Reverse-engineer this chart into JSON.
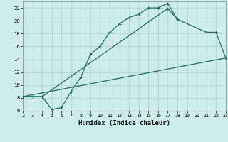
{
  "xlabel": "Humidex (Indice chaleur)",
  "bg_color": "#ceecea",
  "grid_color": "#b8d8d5",
  "line_color": "#1e6b62",
  "xlim": [
    2,
    23
  ],
  "ylim": [
    6,
    23
  ],
  "xticks": [
    2,
    3,
    4,
    5,
    6,
    7,
    8,
    9,
    10,
    11,
    12,
    13,
    14,
    15,
    16,
    17,
    18,
    19,
    20,
    21,
    22,
    23
  ],
  "yticks": [
    6,
    8,
    10,
    12,
    14,
    16,
    18,
    20,
    22
  ],
  "line1_x": [
    2,
    3,
    4,
    5,
    6,
    7,
    8,
    9,
    10,
    11,
    12,
    13,
    14,
    15,
    16,
    17,
    18
  ],
  "line1_y": [
    8.2,
    8.2,
    8.2,
    6.2,
    6.5,
    9.0,
    11.2,
    14.8,
    16.0,
    18.2,
    19.5,
    20.5,
    21.0,
    22.0,
    22.0,
    22.7,
    20.2
  ],
  "line2_x": [
    2,
    3,
    4,
    17,
    18,
    21,
    22,
    23
  ],
  "line2_y": [
    8.2,
    8.2,
    8.2,
    21.9,
    20.2,
    18.2,
    18.2,
    14.2
  ],
  "line3_x": [
    2,
    23
  ],
  "line3_y": [
    8.2,
    14.2
  ],
  "marker": "+"
}
